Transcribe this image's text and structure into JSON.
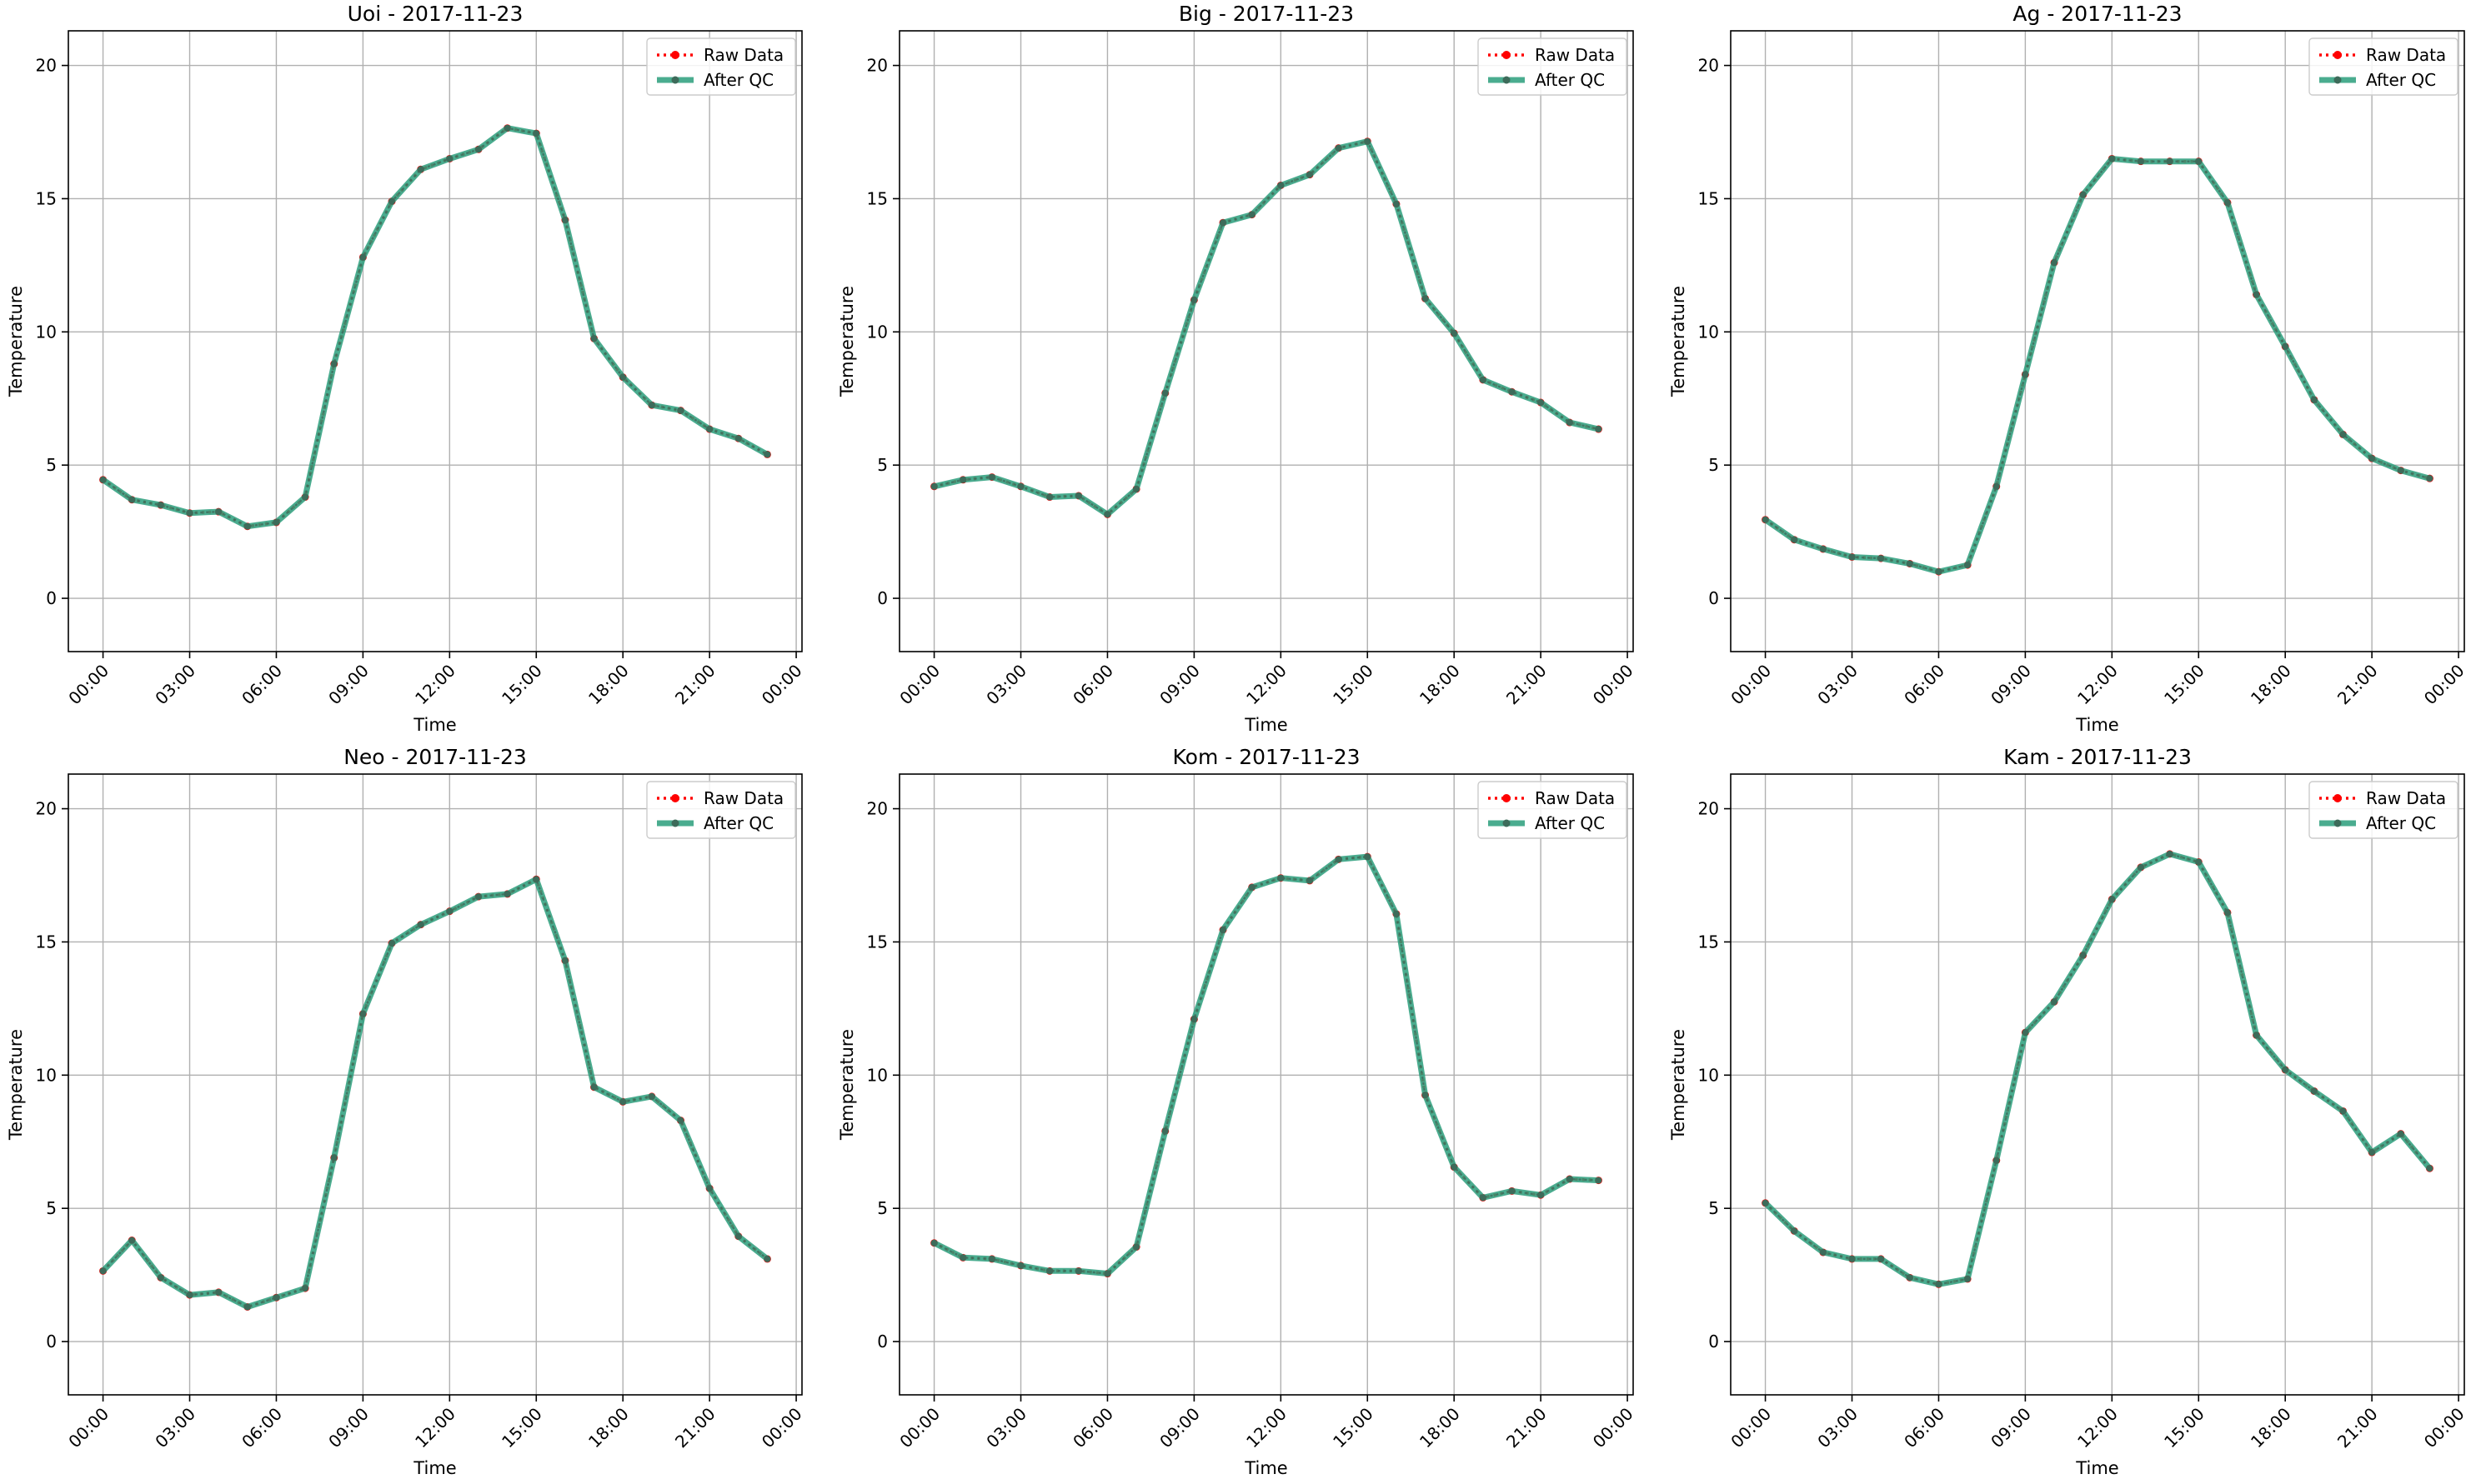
{
  "figure": {
    "background": "#ffffff",
    "raw_color": "#ff0000",
    "qc_color": "#2a9d7b",
    "overlay_color": "#3d6b5a",
    "grid_color": "#b0b0b0"
  },
  "chart_data": [
    {
      "type": "line",
      "title": "Uoi - 2017-11-23",
      "xlabel": "Time",
      "ylabel": "Temperature",
      "x_tick_labels": [
        "00:00",
        "03:00",
        "06:00",
        "09:00",
        "12:00",
        "15:00",
        "18:00",
        "21:00",
        "00:00"
      ],
      "y_tick_labels": [
        "0",
        "5",
        "10",
        "15",
        "20"
      ],
      "x_range_hours": [
        -1.2,
        24.2
      ],
      "ylim": [
        -2.0,
        21.3
      ],
      "grid": true,
      "legend_position": "top-right",
      "legend": [
        "Raw Data",
        "After QC"
      ],
      "series": [
        {
          "name": "Raw Data",
          "color": "#ff0000",
          "style": "dotted",
          "hours": [
            0,
            1,
            2,
            3,
            4,
            5,
            6,
            7,
            8,
            9,
            10,
            11,
            12,
            13,
            14,
            15,
            16,
            17,
            18,
            19,
            20,
            21,
            22,
            23
          ],
          "values": [
            4.45,
            3.7,
            3.5,
            3.2,
            3.25,
            2.7,
            2.85,
            3.8,
            8.8,
            12.8,
            14.9,
            16.1,
            16.5,
            16.85,
            17.65,
            17.45,
            14.2,
            9.75,
            8.3,
            7.25,
            7.05,
            6.35,
            6.0,
            5.4
          ]
        },
        {
          "name": "After QC",
          "color": "#2a9d7b",
          "style": "solid",
          "hours": [
            0,
            1,
            2,
            3,
            4,
            5,
            6,
            7,
            8,
            9,
            10,
            11,
            12,
            13,
            14,
            15,
            16,
            17,
            18,
            19,
            20,
            21,
            22,
            23
          ],
          "values": [
            4.45,
            3.7,
            3.5,
            3.2,
            3.25,
            2.7,
            2.85,
            3.8,
            8.8,
            12.8,
            14.9,
            16.1,
            16.5,
            16.85,
            17.65,
            17.45,
            14.2,
            9.75,
            8.3,
            7.25,
            7.05,
            6.35,
            6.0,
            5.4
          ]
        }
      ]
    },
    {
      "type": "line",
      "title": "Big - 2017-11-23",
      "xlabel": "Time",
      "ylabel": "Temperature",
      "x_tick_labels": [
        "00:00",
        "03:00",
        "06:00",
        "09:00",
        "12:00",
        "15:00",
        "18:00",
        "21:00",
        "00:00"
      ],
      "y_tick_labels": [
        "0",
        "5",
        "10",
        "15",
        "20"
      ],
      "x_range_hours": [
        -1.2,
        24.2
      ],
      "ylim": [
        -2.0,
        21.3
      ],
      "grid": true,
      "legend_position": "top-right",
      "legend": [
        "Raw Data",
        "After QC"
      ],
      "series": [
        {
          "name": "Raw Data",
          "color": "#ff0000",
          "style": "dotted",
          "hours": [
            0,
            1,
            2,
            3,
            4,
            5,
            6,
            7,
            8,
            9,
            10,
            11,
            12,
            13,
            14,
            15,
            16,
            17,
            18,
            19,
            20,
            21,
            22,
            23
          ],
          "values": [
            4.2,
            4.45,
            4.55,
            4.2,
            3.8,
            3.85,
            3.15,
            4.1,
            7.7,
            11.2,
            14.1,
            14.4,
            15.5,
            15.9,
            16.9,
            17.15,
            14.8,
            11.25,
            9.95,
            8.2,
            7.75,
            7.35,
            6.6,
            6.35
          ]
        },
        {
          "name": "After QC",
          "color": "#2a9d7b",
          "style": "solid",
          "hours": [
            0,
            1,
            2,
            3,
            4,
            5,
            6,
            7,
            8,
            9,
            10,
            11,
            12,
            13,
            14,
            15,
            16,
            17,
            18,
            19,
            20,
            21,
            22,
            23
          ],
          "values": [
            4.2,
            4.45,
            4.55,
            4.2,
            3.8,
            3.85,
            3.15,
            4.1,
            7.7,
            11.2,
            14.1,
            14.4,
            15.5,
            15.9,
            16.9,
            17.15,
            14.8,
            11.25,
            9.95,
            8.2,
            7.75,
            7.35,
            6.6,
            6.35
          ]
        }
      ]
    },
    {
      "type": "line",
      "title": "Ag - 2017-11-23",
      "xlabel": "Time",
      "ylabel": "Temperature",
      "x_tick_labels": [
        "00:00",
        "03:00",
        "06:00",
        "09:00",
        "12:00",
        "15:00",
        "18:00",
        "21:00",
        "00:00"
      ],
      "y_tick_labels": [
        "0",
        "5",
        "10",
        "15",
        "20"
      ],
      "x_range_hours": [
        -1.2,
        24.2
      ],
      "ylim": [
        -2.0,
        21.3
      ],
      "grid": true,
      "legend_position": "top-right",
      "legend": [
        "Raw Data",
        "After QC"
      ],
      "series": [
        {
          "name": "Raw Data",
          "color": "#ff0000",
          "style": "dotted",
          "hours": [
            0,
            1,
            2,
            3,
            4,
            5,
            6,
            7,
            8,
            9,
            10,
            11,
            12,
            13,
            14,
            15,
            16,
            17,
            18,
            19,
            20,
            21,
            22,
            23
          ],
          "values": [
            2.95,
            2.2,
            1.85,
            1.55,
            1.5,
            1.3,
            1.0,
            1.25,
            4.2,
            8.4,
            12.6,
            15.15,
            16.5,
            16.4,
            16.4,
            16.4,
            14.85,
            11.4,
            9.45,
            7.45,
            6.15,
            5.25,
            4.8,
            4.5
          ]
        },
        {
          "name": "After QC",
          "color": "#2a9d7b",
          "style": "solid",
          "hours": [
            0,
            1,
            2,
            3,
            4,
            5,
            6,
            7,
            8,
            9,
            10,
            11,
            12,
            13,
            14,
            15,
            16,
            17,
            18,
            19,
            20,
            21,
            22,
            23
          ],
          "values": [
            2.95,
            2.2,
            1.85,
            1.55,
            1.5,
            1.3,
            1.0,
            1.25,
            4.2,
            8.4,
            12.6,
            15.15,
            16.5,
            16.4,
            16.4,
            16.4,
            14.85,
            11.4,
            9.45,
            7.45,
            6.15,
            5.25,
            4.8,
            4.5
          ]
        }
      ]
    },
    {
      "type": "line",
      "title": "Neo - 2017-11-23",
      "xlabel": "Time",
      "ylabel": "Temperature",
      "x_tick_labels": [
        "00:00",
        "03:00",
        "06:00",
        "09:00",
        "12:00",
        "15:00",
        "18:00",
        "21:00",
        "00:00"
      ],
      "y_tick_labels": [
        "0",
        "5",
        "10",
        "15",
        "20"
      ],
      "x_range_hours": [
        -1.2,
        24.2
      ],
      "ylim": [
        -2.0,
        21.3
      ],
      "grid": true,
      "legend_position": "top-right",
      "legend": [
        "Raw Data",
        "After QC"
      ],
      "series": [
        {
          "name": "Raw Data",
          "color": "#ff0000",
          "style": "dotted",
          "hours": [
            0,
            1,
            2,
            3,
            4,
            5,
            6,
            7,
            8,
            9,
            10,
            11,
            12,
            13,
            14,
            15,
            16,
            17,
            18,
            19,
            20,
            21,
            22,
            23
          ],
          "values": [
            2.65,
            3.8,
            2.4,
            1.75,
            1.85,
            1.3,
            1.65,
            2.0,
            6.9,
            12.3,
            14.95,
            15.65,
            16.15,
            16.7,
            16.8,
            17.35,
            14.3,
            9.55,
            9.0,
            9.2,
            8.3,
            5.75,
            3.95,
            3.1
          ]
        },
        {
          "name": "After QC",
          "color": "#2a9d7b",
          "style": "solid",
          "hours": [
            0,
            1,
            2,
            3,
            4,
            5,
            6,
            7,
            8,
            9,
            10,
            11,
            12,
            13,
            14,
            15,
            16,
            17,
            18,
            19,
            20,
            21,
            22,
            23
          ],
          "values": [
            2.65,
            3.8,
            2.4,
            1.75,
            1.85,
            1.3,
            1.65,
            2.0,
            6.9,
            12.3,
            14.95,
            15.65,
            16.15,
            16.7,
            16.8,
            17.35,
            14.3,
            9.55,
            9.0,
            9.2,
            8.3,
            5.75,
            3.95,
            3.1
          ]
        }
      ]
    },
    {
      "type": "line",
      "title": "Kom - 2017-11-23",
      "xlabel": "Time",
      "ylabel": "Temperature",
      "x_tick_labels": [
        "00:00",
        "03:00",
        "06:00",
        "09:00",
        "12:00",
        "15:00",
        "18:00",
        "21:00",
        "00:00"
      ],
      "y_tick_labels": [
        "0",
        "5",
        "10",
        "15",
        "20"
      ],
      "x_range_hours": [
        -1.2,
        24.2
      ],
      "ylim": [
        -2.0,
        21.3
      ],
      "grid": true,
      "legend_position": "top-right",
      "legend": [
        "Raw Data",
        "After QC"
      ],
      "series": [
        {
          "name": "Raw Data",
          "color": "#ff0000",
          "style": "dotted",
          "hours": [
            0,
            1,
            2,
            3,
            4,
            5,
            6,
            7,
            8,
            9,
            10,
            11,
            12,
            13,
            14,
            15,
            16,
            17,
            18,
            19,
            20,
            21,
            22,
            23
          ],
          "values": [
            3.7,
            3.15,
            3.1,
            2.85,
            2.65,
            2.65,
            2.55,
            3.55,
            7.9,
            12.1,
            15.45,
            17.05,
            17.4,
            17.3,
            18.1,
            18.2,
            16.05,
            9.25,
            6.55,
            5.4,
            5.65,
            5.5,
            6.1,
            6.05
          ]
        },
        {
          "name": "After QC",
          "color": "#2a9d7b",
          "style": "solid",
          "hours": [
            0,
            1,
            2,
            3,
            4,
            5,
            6,
            7,
            8,
            9,
            10,
            11,
            12,
            13,
            14,
            15,
            16,
            17,
            18,
            19,
            20,
            21,
            22,
            23
          ],
          "values": [
            3.7,
            3.15,
            3.1,
            2.85,
            2.65,
            2.65,
            2.55,
            3.55,
            7.9,
            12.1,
            15.45,
            17.05,
            17.4,
            17.3,
            18.1,
            18.2,
            16.05,
            9.25,
            6.55,
            5.4,
            5.65,
            5.5,
            6.1,
            6.05
          ]
        }
      ]
    },
    {
      "type": "line",
      "title": "Kam - 2017-11-23",
      "xlabel": "Time",
      "ylabel": "Temperature",
      "x_tick_labels": [
        "00:00",
        "03:00",
        "06:00",
        "09:00",
        "12:00",
        "15:00",
        "18:00",
        "21:00",
        "00:00"
      ],
      "y_tick_labels": [
        "0",
        "5",
        "10",
        "15",
        "20"
      ],
      "x_range_hours": [
        -1.2,
        24.2
      ],
      "ylim": [
        -2.0,
        21.3
      ],
      "grid": true,
      "legend_position": "top-right",
      "legend": [
        "Raw Data",
        "After QC"
      ],
      "series": [
        {
          "name": "Raw Data",
          "color": "#ff0000",
          "style": "dotted",
          "hours": [
            0,
            1,
            2,
            3,
            4,
            5,
            6,
            7,
            8,
            9,
            10,
            11,
            12,
            13,
            14,
            15,
            16,
            17,
            18,
            19,
            20,
            21,
            22,
            23
          ],
          "values": [
            5.2,
            4.15,
            3.35,
            3.1,
            3.1,
            2.4,
            2.15,
            2.35,
            6.8,
            11.6,
            12.75,
            14.5,
            16.6,
            17.8,
            18.3,
            18.0,
            16.1,
            11.5,
            10.2,
            9.4,
            8.65,
            7.1,
            7.8,
            6.5
          ]
        },
        {
          "name": "After QC",
          "color": "#2a9d7b",
          "style": "solid",
          "hours": [
            0,
            1,
            2,
            3,
            4,
            5,
            6,
            7,
            8,
            9,
            10,
            11,
            12,
            13,
            14,
            15,
            16,
            17,
            18,
            19,
            20,
            21,
            22,
            23
          ],
          "values": [
            5.2,
            4.15,
            3.35,
            3.1,
            3.1,
            2.4,
            2.15,
            2.35,
            6.8,
            11.6,
            12.75,
            14.5,
            16.6,
            17.8,
            18.3,
            18.0,
            16.1,
            11.5,
            10.2,
            9.4,
            8.65,
            7.1,
            7.8,
            6.5
          ]
        }
      ]
    }
  ]
}
